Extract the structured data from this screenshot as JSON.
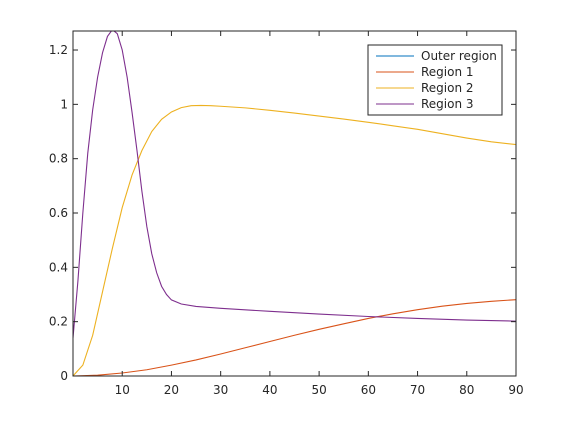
{
  "chart_data": {
    "type": "line",
    "title": "",
    "xlabel": "",
    "ylabel": "",
    "xlim": [
      0,
      90
    ],
    "ylim": [
      0,
      1.27
    ],
    "xticks": [
      10,
      20,
      30,
      40,
      50,
      60,
      70,
      80,
      90
    ],
    "xtick_labels": [
      "10",
      "20",
      "30",
      "40",
      "50",
      "60",
      "70",
      "80",
      "90"
    ],
    "yticks": [
      0,
      0.2,
      0.4,
      0.6,
      0.8,
      1,
      1.2
    ],
    "ytick_labels": [
      "0",
      "0.2",
      "0.4",
      "0.6",
      "0.8",
      "1",
      "1.2"
    ],
    "grid": false,
    "legend_position": "top-right",
    "series": [
      {
        "name": "Outer region",
        "color": "#0072BD",
        "x": [
          0,
          10,
          20,
          30,
          40,
          50,
          60,
          70,
          80,
          90
        ],
        "y": [
          0,
          0,
          0,
          0,
          0,
          0,
          0,
          0,
          0,
          0
        ]
      },
      {
        "name": "Region 1",
        "color": "#D95319",
        "x": [
          0,
          5,
          10,
          15,
          20,
          25,
          30,
          35,
          40,
          45,
          50,
          55,
          60,
          65,
          70,
          75,
          80,
          85,
          90
        ],
        "y": [
          0,
          0.003,
          0.011,
          0.023,
          0.04,
          0.059,
          0.081,
          0.104,
          0.127,
          0.15,
          0.172,
          0.192,
          0.212,
          0.229,
          0.244,
          0.257,
          0.267,
          0.275,
          0.281
        ]
      },
      {
        "name": "Region 2",
        "color": "#EDB120",
        "x": [
          0,
          2,
          4,
          6,
          8,
          10,
          12,
          14,
          16,
          18,
          20,
          22,
          24,
          26,
          28,
          30,
          35,
          40,
          45,
          50,
          55,
          60,
          65,
          70,
          75,
          80,
          85,
          90
        ],
        "y": [
          0,
          0.04,
          0.15,
          0.31,
          0.47,
          0.62,
          0.74,
          0.83,
          0.9,
          0.945,
          0.972,
          0.988,
          0.995,
          0.996,
          0.995,
          0.993,
          0.987,
          0.978,
          0.968,
          0.957,
          0.946,
          0.934,
          0.921,
          0.908,
          0.892,
          0.876,
          0.862,
          0.852
        ]
      },
      {
        "name": "Region 3",
        "color": "#7E2F8E",
        "x": [
          0,
          1,
          2,
          3,
          4,
          5,
          6,
          7,
          8,
          9,
          10,
          11,
          12,
          13,
          14,
          15,
          16,
          17,
          18,
          19,
          20,
          22,
          25,
          30,
          40,
          50,
          60,
          70,
          80,
          90
        ],
        "y": [
          0.14,
          0.35,
          0.6,
          0.82,
          0.98,
          1.1,
          1.19,
          1.25,
          1.275,
          1.26,
          1.2,
          1.1,
          0.97,
          0.83,
          0.68,
          0.55,
          0.45,
          0.38,
          0.33,
          0.3,
          0.28,
          0.265,
          0.256,
          0.249,
          0.238,
          0.228,
          0.219,
          0.212,
          0.206,
          0.202
        ]
      }
    ]
  }
}
